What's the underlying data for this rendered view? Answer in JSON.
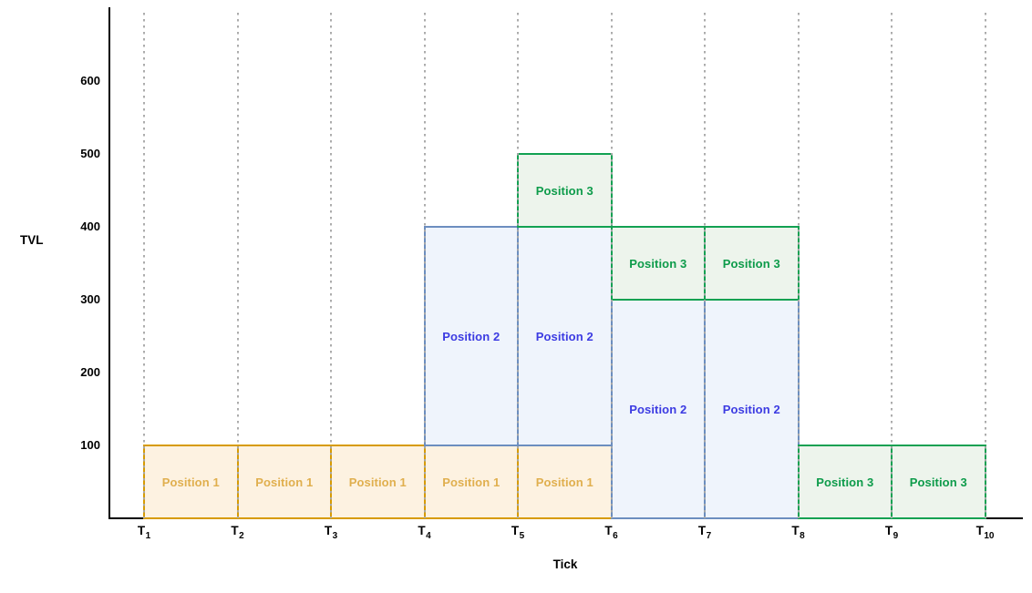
{
  "chart_data": {
    "type": "bar",
    "variant": "interval-box-chart",
    "title": "",
    "xlabel": "Tick",
    "ylabel": "TVL",
    "x_ticks": [
      "T1",
      "T2",
      "T3",
      "T4",
      "T5",
      "T6",
      "T7",
      "T8",
      "T9",
      "T10"
    ],
    "y_ticks": [
      "100",
      "200",
      "300",
      "400",
      "500",
      "600"
    ],
    "ylim": [
      0,
      700
    ],
    "grid": "vertical-dotted",
    "gridline_color": "#A8A8A8",
    "axis_color": "#000000",
    "positions": [
      {
        "name": "Position 1",
        "stroke": "#D79B00",
        "fill": "#FDF2E1",
        "text_color": "#E0AF4E",
        "boxes": [
          {
            "x0": "T1",
            "x1": "T2",
            "y0": 0,
            "y1": 100
          },
          {
            "x0": "T2",
            "x1": "T3",
            "y0": 0,
            "y1": 100
          },
          {
            "x0": "T3",
            "x1": "T4",
            "y0": 0,
            "y1": 100
          },
          {
            "x0": "T4",
            "x1": "T5",
            "y0": 0,
            "y1": 100
          },
          {
            "x0": "T5",
            "x1": "T6",
            "y0": 0,
            "y1": 100
          }
        ]
      },
      {
        "name": "Position 2",
        "stroke": "#6C8EBF",
        "fill": "#EFF4FC",
        "text_color": "#3C3BE2",
        "boxes": [
          {
            "x0": "T4",
            "x1": "T5",
            "y0": 100,
            "y1": 400
          },
          {
            "x0": "T5",
            "x1": "T6",
            "y0": 100,
            "y1": 400
          },
          {
            "x0": "T6",
            "x1": "T7",
            "y0": 0,
            "y1": 300
          },
          {
            "x0": "T7",
            "x1": "T8",
            "y0": 0,
            "y1": 300
          }
        ]
      },
      {
        "name": "Position 3",
        "stroke": "#12A152",
        "fill": "#EDF4EC",
        "text_color": "#0D9B4A",
        "boxes": [
          {
            "x0": "T5",
            "x1": "T6",
            "y0": 400,
            "y1": 500
          },
          {
            "x0": "T6",
            "x1": "T7",
            "y0": 300,
            "y1": 400
          },
          {
            "x0": "T7",
            "x1": "T8",
            "y0": 300,
            "y1": 400
          },
          {
            "x0": "T8",
            "x1": "T9",
            "y0": 0,
            "y1": 100
          },
          {
            "x0": "T9",
            "x1": "T10",
            "y0": 0,
            "y1": 100
          }
        ]
      }
    ]
  }
}
